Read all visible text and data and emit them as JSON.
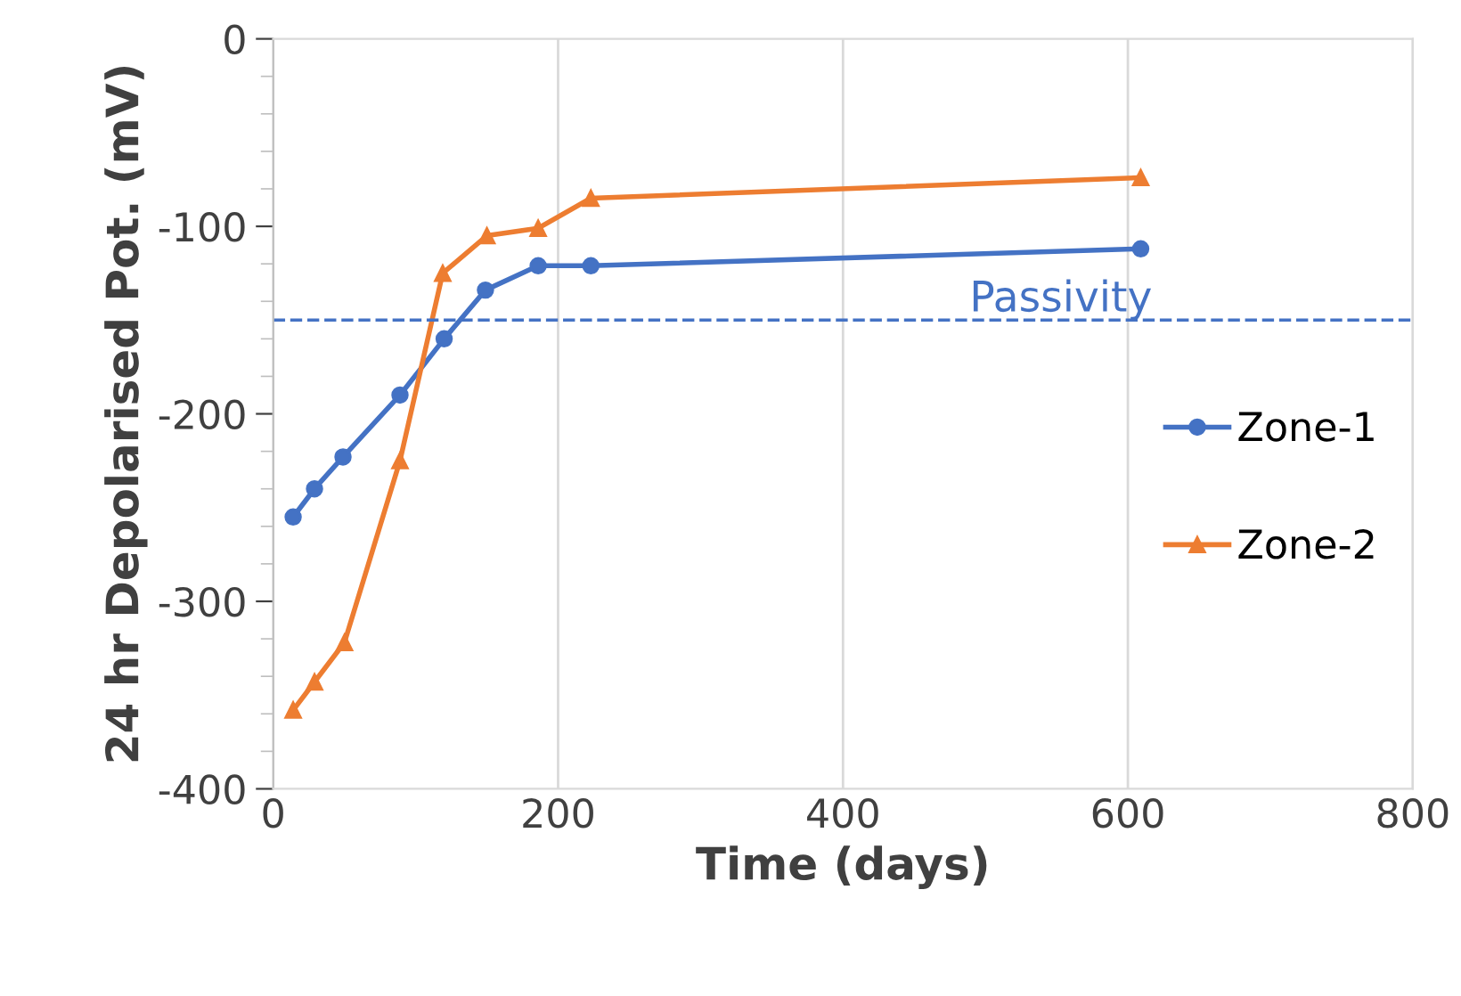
{
  "chart_data": {
    "type": "line",
    "xlabel": "Time (days)",
    "ylabel": "24 hr Depolarised Pot. (mV)",
    "series": [
      {
        "name": "Zone-1",
        "color": "#4472c4",
        "marker": "circle",
        "x": [
          14,
          29,
          49,
          89,
          120,
          149,
          186,
          223,
          609
        ],
        "values": [
          -255,
          -240,
          -223,
          -190,
          -160,
          -134,
          -121,
          -121,
          -112
        ]
      },
      {
        "name": "Zone-2",
        "color": "#ed7d31",
        "marker": "triangle",
        "x": [
          14,
          29,
          50,
          89,
          119,
          150,
          186,
          223,
          609
        ],
        "values": [
          -358,
          -343,
          -322,
          -225,
          -125,
          -105,
          -101,
          -85,
          -74
        ]
      }
    ],
    "xlim": [
      0,
      800
    ],
    "xticks": [
      0,
      200,
      400,
      600,
      800
    ],
    "ylim": [
      -400,
      0
    ],
    "yticks": [
      -400,
      -300,
      -200,
      -100,
      0
    ],
    "ref_lines": [
      {
        "axis": "y",
        "value": -150,
        "label": "Passivity",
        "color": "#4472c4",
        "line_style": "dashed"
      }
    ],
    "grid": "x",
    "legend": "right",
    "line_style": "solid"
  }
}
